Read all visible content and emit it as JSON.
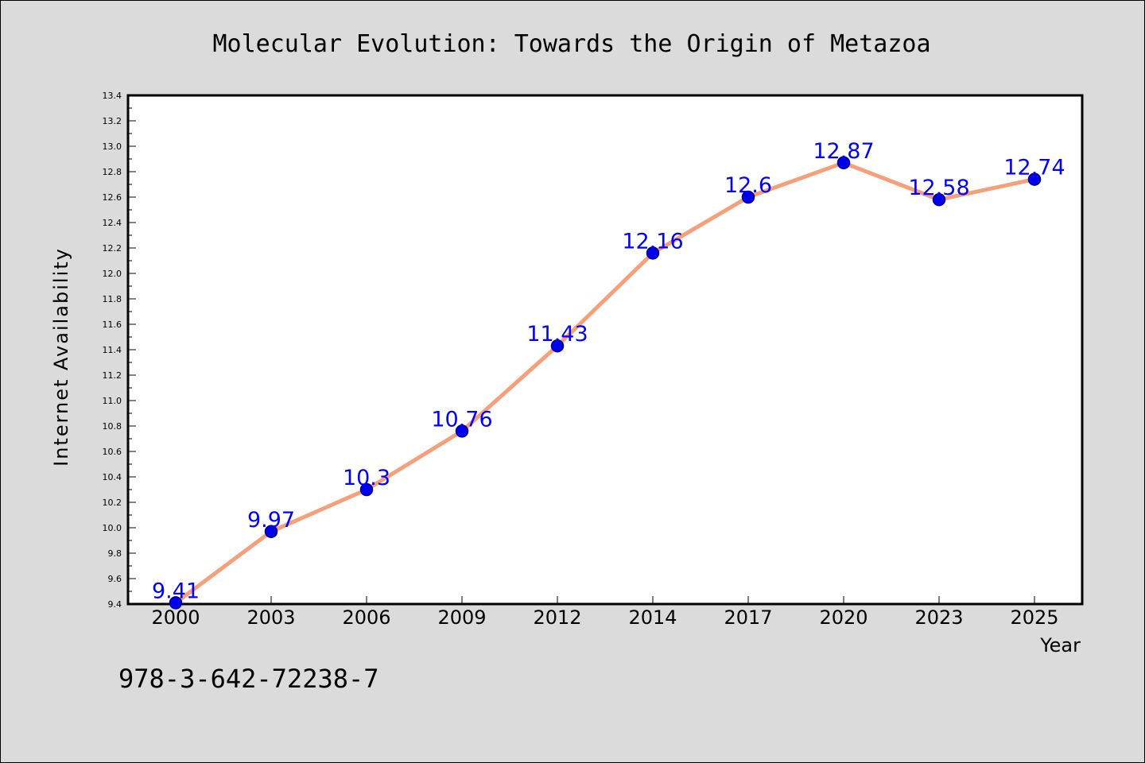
{
  "chart_data": {
    "type": "line",
    "title": "Molecular Evolution: Towards the Origin of Metazoa",
    "xlabel": "Year",
    "ylabel": "Internet Availability",
    "categories": [
      "2000",
      "2003",
      "2006",
      "2009",
      "2012",
      "2014",
      "2017",
      "2020",
      "2023",
      "2025"
    ],
    "series": [
      {
        "values": [
          9.41,
          9.97,
          10.3,
          10.76,
          11.43,
          12.16,
          12.6,
          12.87,
          12.58,
          12.74
        ],
        "data_labels": [
          "9.41",
          "9.97",
          "10.3",
          "10.76",
          "11.43",
          "12.16",
          "12.6",
          "12.87",
          "12.58",
          "12.74"
        ]
      }
    ],
    "ylim": [
      9.4,
      13.4
    ],
    "yticks": [
      "9.4",
      "9.6",
      "9.8",
      "10.0",
      "10.2",
      "10.4",
      "10.6",
      "10.8",
      "11.0",
      "11.2",
      "11.4",
      "11.6",
      "11.8",
      "12.0",
      "12.2",
      "12.4",
      "12.6",
      "12.8",
      "13.0",
      "13.2",
      "13.4"
    ],
    "grid": false,
    "legend": false
  },
  "footer_text": "978-3-642-72238-7",
  "colors": {
    "background": "#dbdbdb",
    "plot_background": "#ffffff",
    "line": "#f5a07a",
    "marker_fill": "#0000ee",
    "marker_edge": "#000080",
    "data_label": "#0000ff"
  }
}
